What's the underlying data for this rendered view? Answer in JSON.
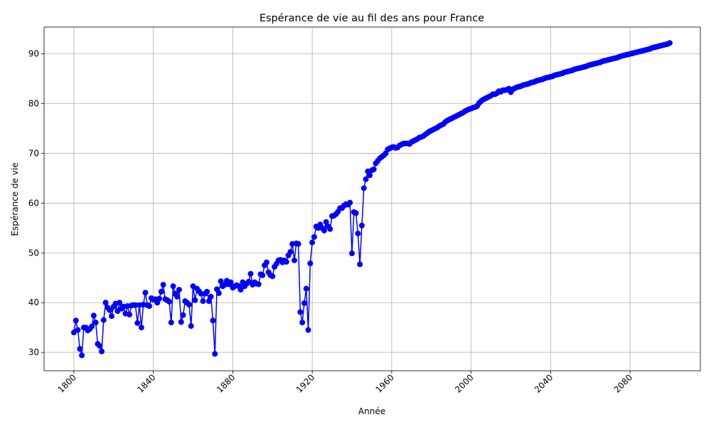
{
  "chart_data": {
    "type": "line",
    "title": "Espérance de vie au fil des ans pour France",
    "xlabel": "Année",
    "ylabel": "Espérance de vie",
    "x": [
      1800,
      1801,
      1802,
      1803,
      1804,
      1805,
      1806,
      1807,
      1808,
      1809,
      1810,
      1811,
      1812,
      1813,
      1814,
      1815,
      1816,
      1817,
      1818,
      1819,
      1820,
      1821,
      1822,
      1823,
      1824,
      1825,
      1826,
      1827,
      1828,
      1829,
      1830,
      1831,
      1832,
      1833,
      1834,
      1835,
      1836,
      1837,
      1838,
      1839,
      1840,
      1841,
      1842,
      1843,
      1844,
      1845,
      1846,
      1847,
      1848,
      1849,
      1850,
      1851,
      1852,
      1853,
      1854,
      1855,
      1856,
      1857,
      1858,
      1859,
      1860,
      1861,
      1862,
      1863,
      1864,
      1865,
      1866,
      1867,
      1868,
      1869,
      1870,
      1871,
      1872,
      1873,
      1874,
      1875,
      1876,
      1877,
      1878,
      1879,
      1880,
      1881,
      1882,
      1883,
      1884,
      1885,
      1886,
      1887,
      1888,
      1889,
      1890,
      1891,
      1892,
      1893,
      1894,
      1895,
      1896,
      1897,
      1898,
      1899,
      1900,
      1901,
      1902,
      1903,
      1904,
      1905,
      1906,
      1907,
      1908,
      1909,
      1910,
      1911,
      1912,
      1913,
      1914,
      1915,
      1916,
      1917,
      1918,
      1919,
      1920,
      1921,
      1922,
      1923,
      1924,
      1925,
      1926,
      1927,
      1928,
      1929,
      1930,
      1931,
      1932,
      1933,
      1934,
      1935,
      1936,
      1937,
      1938,
      1939,
      1940,
      1941,
      1942,
      1943,
      1944,
      1945,
      1946,
      1947,
      1948,
      1949,
      1950,
      1951,
      1952,
      1953,
      1954,
      1955,
      1956,
      1957,
      1958,
      1959,
      1960,
      1961,
      1962,
      1963,
      1964,
      1965,
      1966,
      1967,
      1968,
      1969,
      1970,
      1971,
      1972,
      1973,
      1974,
      1975,
      1976,
      1977,
      1978,
      1979,
      1980,
      1981,
      1982,
      1983,
      1984,
      1985,
      1986,
      1987,
      1988,
      1989,
      1990,
      1991,
      1992,
      1993,
      1994,
      1995,
      1996,
      1997,
      1998,
      1999,
      2000,
      2001,
      2002,
      2003,
      2004,
      2005,
      2006,
      2007,
      2008,
      2009,
      2010,
      2011,
      2012,
      2013,
      2014,
      2015,
      2016,
      2017,
      2018,
      2019,
      2020,
      2021,
      2022,
      2023,
      2024,
      2025,
      2026,
      2027,
      2028,
      2029,
      2030,
      2031,
      2032,
      2033,
      2034,
      2035,
      2036,
      2037,
      2038,
      2039,
      2040,
      2041,
      2042,
      2043,
      2044,
      2045,
      2046,
      2047,
      2048,
      2049,
      2050,
      2051,
      2052,
      2053,
      2054,
      2055,
      2056,
      2057,
      2058,
      2059,
      2060,
      2061,
      2062,
      2063,
      2064,
      2065,
      2066,
      2067,
      2068,
      2069,
      2070,
      2071,
      2072,
      2073,
      2074,
      2075,
      2076,
      2077,
      2078,
      2079,
      2080,
      2081,
      2082,
      2083,
      2084,
      2085,
      2086,
      2087,
      2088,
      2089,
      2090,
      2091,
      2092,
      2093,
      2094,
      2095,
      2096,
      2097,
      2098,
      2099,
      2100
    ],
    "series": [
      {
        "color": "#0000ff",
        "values": [
          34.0,
          36.4,
          34.5,
          30.7,
          29.4,
          35.0,
          35.0,
          34.4,
          34.7,
          35.2,
          37.4,
          36.0,
          31.7,
          31.3,
          30.2,
          36.5,
          40.0,
          39.0,
          38.5,
          37.3,
          39.2,
          39.8,
          38.3,
          40.0,
          38.8,
          39.2,
          37.8,
          39.3,
          37.6,
          39.4,
          39.5,
          39.5,
          35.9,
          39.5,
          35.0,
          39.6,
          42.0,
          39.5,
          39.3,
          40.9,
          40.6,
          40.7,
          40.0,
          40.8,
          42.2,
          43.6,
          40.7,
          40.5,
          40.2,
          36.0,
          43.3,
          41.8,
          41.2,
          42.6,
          36.1,
          37.5,
          40.3,
          40.0,
          39.6,
          35.3,
          43.3,
          40.5,
          42.8,
          42.3,
          41.8,
          40.3,
          41.8,
          42.2,
          40.3,
          41.2,
          36.4,
          29.7,
          42.7,
          41.9,
          44.3,
          43.3,
          43.6,
          44.4,
          43.7,
          44.1,
          43.0,
          43.3,
          43.5,
          43.3,
          42.6,
          44.1,
          43.3,
          43.8,
          44.2,
          45.8,
          43.6,
          44.1,
          43.8,
          43.7,
          45.7,
          45.5,
          47.5,
          48.1,
          46.1,
          45.5,
          45.3,
          47.2,
          47.8,
          48.5,
          48.6,
          48.1,
          48.5,
          48.2,
          49.5,
          50.2,
          51.8,
          48.5,
          51.9,
          51.8,
          38.1,
          36.0,
          39.9,
          42.8,
          34.5,
          47.9,
          52.1,
          53.2,
          55.3,
          55.0,
          55.7,
          55.0,
          54.5,
          56.2,
          55.3,
          54.8,
          57.4,
          57.5,
          57.8,
          58.3,
          59.0,
          59.0,
          59.5,
          59.8,
          59.7,
          60.1,
          49.9,
          58.2,
          58.0,
          53.9,
          47.7,
          55.5,
          63.0,
          64.8,
          66.4,
          65.6,
          66.6,
          66.8,
          68.0,
          68.5,
          69.0,
          69.3,
          69.6,
          70.0,
          70.8,
          71.0,
          71.2,
          71.3,
          71.1,
          71.2,
          71.6,
          71.8,
          72.0,
          72.0,
          72.0,
          71.9,
          72.3,
          72.5,
          72.7,
          72.9,
          73.2,
          73.3,
          73.5,
          73.8,
          74.1,
          74.4,
          74.6,
          74.8,
          75.0,
          75.2,
          75.5,
          75.7,
          75.9,
          76.3,
          76.6,
          76.8,
          77.0,
          77.2,
          77.4,
          77.6,
          77.8,
          78.0,
          78.2,
          78.5,
          78.7,
          78.9,
          79.0,
          79.2,
          79.3,
          79.5,
          80.1,
          80.5,
          80.8,
          81.0,
          81.2,
          81.4,
          81.6,
          81.9,
          81.9,
          82.1,
          82.5,
          82.4,
          82.7,
          82.7,
          82.8,
          83.0,
          82.3,
          82.9,
          83.1,
          83.3,
          83.4,
          83.5,
          83.7,
          83.8,
          83.9,
          84.0,
          84.2,
          84.3,
          84.4,
          84.6,
          84.7,
          84.8,
          84.9,
          85.1,
          85.2,
          85.3,
          85.4,
          85.5,
          85.7,
          85.8,
          85.9,
          86.0,
          86.1,
          86.3,
          86.4,
          86.5,
          86.6,
          86.7,
          86.9,
          87.0,
          87.1,
          87.2,
          87.3,
          87.4,
          87.5,
          87.7,
          87.8,
          87.9,
          88.0,
          88.1,
          88.2,
          88.3,
          88.5,
          88.6,
          88.7,
          88.8,
          88.9,
          89.0,
          89.1,
          89.2,
          89.3,
          89.5,
          89.6,
          89.7,
          89.8,
          89.9,
          90.0,
          90.1,
          90.2,
          90.3,
          90.4,
          90.5,
          90.6,
          90.7,
          90.8,
          90.9,
          91.0,
          91.2,
          91.3,
          91.4,
          91.5,
          91.6,
          91.7,
          91.8,
          91.9,
          92.0,
          92.2
        ]
      }
    ],
    "xlim": [
      1785,
      2115.4
    ],
    "ylim": [
      26.3,
      95.4
    ],
    "xticks": [
      1800,
      1840,
      1880,
      1920,
      1960,
      2000,
      2040,
      2080
    ],
    "yticks": [
      30,
      40,
      50,
      60,
      70,
      80,
      90
    ],
    "grid": true,
    "marker": "o"
  }
}
